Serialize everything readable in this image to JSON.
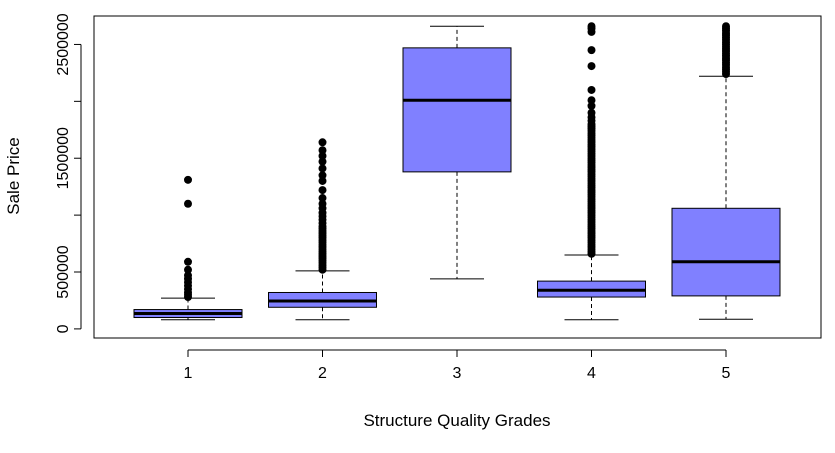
{
  "chart_data": {
    "type": "boxplot",
    "title": "",
    "xlabel": "Structure Quality Grades",
    "ylabel": "Sale Price",
    "categories": [
      "1",
      "2",
      "3",
      "4",
      "5"
    ],
    "y_ticks": [
      0,
      500000,
      1500000,
      2500000
    ],
    "y_tick_labels": [
      "0",
      "500000",
      "1500000",
      "2500000"
    ],
    "ylim": [
      -80000,
      2750000
    ],
    "box_fill": "#8080ff",
    "grid": false,
    "legend": "none",
    "boxes": [
      {
        "category": "1",
        "whisker_low": 80000,
        "q1": 100000,
        "median": 135000,
        "q3": 170000,
        "whisker_high": 270000,
        "outliers": [
          280000,
          300000,
          320000,
          350000,
          380000,
          410000,
          440000,
          470000,
          520000,
          590000,
          1100000,
          1310000
        ]
      },
      {
        "category": "2",
        "whisker_low": 80000,
        "q1": 190000,
        "median": 245000,
        "q3": 320000,
        "whisker_high": 510000,
        "outliers": [
          520000,
          540000,
          560000,
          580000,
          600000,
          620000,
          640000,
          660000,
          680000,
          700000,
          720000,
          740000,
          760000,
          780000,
          800000,
          820000,
          840000,
          860000,
          880000,
          900000,
          930000,
          960000,
          990000,
          1020000,
          1060000,
          1100000,
          1150000,
          1220000,
          1300000,
          1350000,
          1410000,
          1470000,
          1520000,
          1570000,
          1640000
        ]
      },
      {
        "category": "3",
        "whisker_low": 440000,
        "q1": 1380000,
        "median": 2010000,
        "q3": 2470000,
        "whisker_high": 2660000,
        "outliers": []
      },
      {
        "category": "4",
        "whisker_low": 80000,
        "q1": 280000,
        "median": 340000,
        "q3": 420000,
        "whisker_high": 650000,
        "outliers": [
          660000,
          680000,
          700000,
          720000,
          740000,
          760000,
          780000,
          800000,
          820000,
          840000,
          860000,
          880000,
          900000,
          920000,
          940000,
          960000,
          980000,
          1000000,
          1020000,
          1040000,
          1060000,
          1080000,
          1100000,
          1120000,
          1140000,
          1160000,
          1180000,
          1200000,
          1220000,
          1240000,
          1260000,
          1280000,
          1300000,
          1320000,
          1340000,
          1360000,
          1380000,
          1400000,
          1420000,
          1440000,
          1460000,
          1480000,
          1500000,
          1520000,
          1540000,
          1560000,
          1580000,
          1600000,
          1620000,
          1640000,
          1660000,
          1680000,
          1700000,
          1720000,
          1740000,
          1760000,
          1780000,
          1800000,
          1830000,
          1860000,
          1900000,
          1960000,
          2010000,
          2100000,
          2310000,
          2450000,
          2610000,
          2640000,
          2660000
        ]
      },
      {
        "category": "5",
        "whisker_low": 85000,
        "q1": 290000,
        "median": 590000,
        "q3": 1060000,
        "whisker_high": 2220000,
        "outliers": [
          2240000,
          2260000,
          2280000,
          2300000,
          2320000,
          2340000,
          2360000,
          2380000,
          2400000,
          2420000,
          2440000,
          2460000,
          2480000,
          2500000,
          2520000,
          2540000,
          2560000,
          2580000,
          2600000,
          2620000,
          2640000,
          2660000
        ]
      }
    ]
  }
}
